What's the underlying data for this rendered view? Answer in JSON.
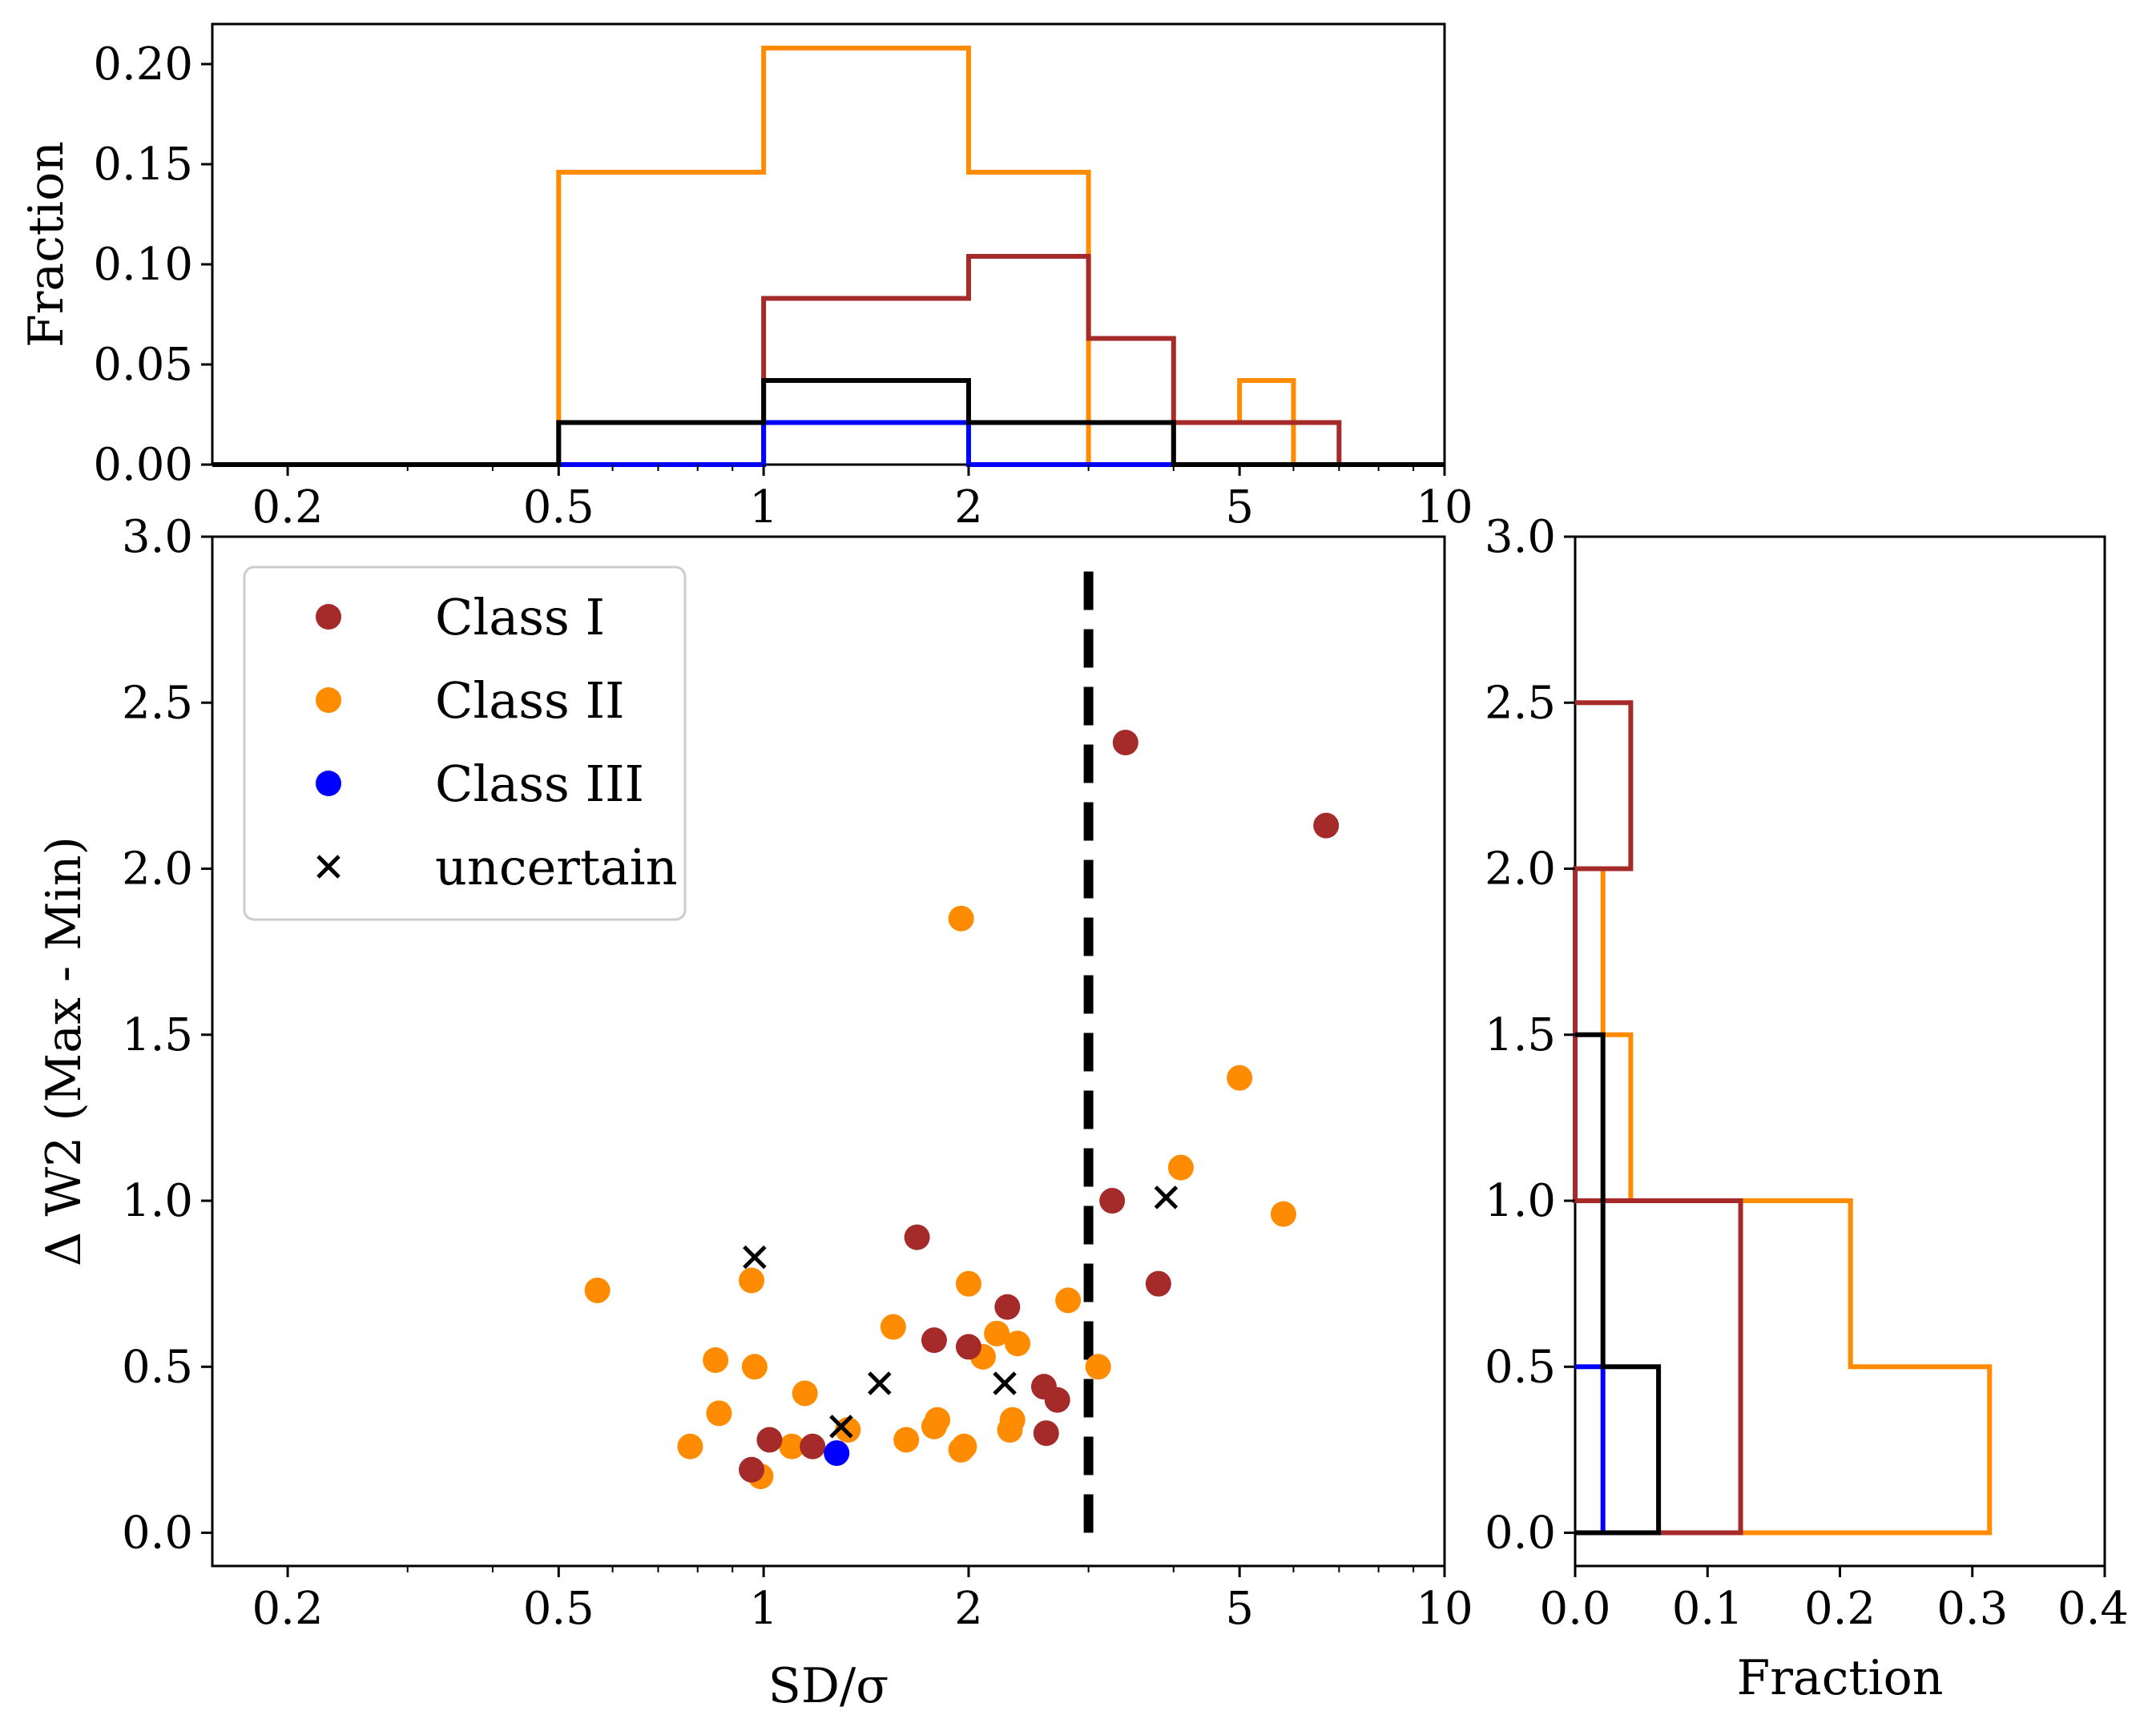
{
  "chart_data": {
    "type": "scatter",
    "colors": {
      "class_i": "#a52a2a",
      "class_ii": "#ff8c00",
      "class_iii": "#0000ff",
      "uncertain": "#000000"
    },
    "scatter": {
      "xlabel": "SD/σ",
      "ylabel": "Δ W2 (Max - Min)",
      "xscale": "log",
      "xlim": [
        0.155,
        10
      ],
      "ylim": [
        -0.1,
        3.0
      ],
      "x_ticks": [
        0.2,
        0.5,
        1,
        2,
        5,
        10
      ],
      "x_tick_labels": [
        "0.2",
        "0.5",
        "1",
        "2",
        "5",
        "10"
      ],
      "y_ticks": [
        0.0,
        0.5,
        1.0,
        1.5,
        2.0,
        2.5,
        3.0
      ],
      "y_tick_labels": [
        "0.0",
        "0.5",
        "1.0",
        "1.5",
        "2.0",
        "2.5",
        "3.0"
      ],
      "threshold_x": 3.0,
      "threshold_y_range": [
        0.0,
        2.93
      ],
      "legend": {
        "position": "upper-left",
        "entries": [
          {
            "key": "class_i",
            "label": "Class I",
            "marker": "circle"
          },
          {
            "key": "class_ii",
            "label": "Class II",
            "marker": "circle"
          },
          {
            "key": "class_iii",
            "label": "Class III",
            "marker": "circle"
          },
          {
            "key": "uncertain",
            "label": "uncertain",
            "marker": "x"
          }
        ]
      },
      "series": [
        {
          "key": "class_ii",
          "name": "Class II",
          "marker": "circle",
          "points": [
            [
              0.57,
              0.73
            ],
            [
              0.78,
              0.26
            ],
            [
              0.85,
              0.52
            ],
            [
              0.86,
              0.36
            ],
            [
              0.96,
              0.76
            ],
            [
              0.97,
              0.5
            ],
            [
              0.99,
              0.17
            ],
            [
              1.1,
              0.26
            ],
            [
              1.15,
              0.42
            ],
            [
              1.33,
              0.31
            ],
            [
              1.55,
              0.62
            ],
            [
              1.62,
              0.28
            ],
            [
              1.78,
              0.32
            ],
            [
              1.8,
              0.34
            ],
            [
              1.95,
              1.85
            ],
            [
              1.95,
              0.25
            ],
            [
              1.97,
              0.26
            ],
            [
              2.0,
              0.75
            ],
            [
              2.1,
              0.53
            ],
            [
              2.2,
              0.6
            ],
            [
              2.3,
              0.31
            ],
            [
              2.32,
              0.34
            ],
            [
              2.36,
              0.57
            ],
            [
              2.8,
              0.7
            ],
            [
              3.1,
              0.5
            ],
            [
              4.1,
              1.1
            ],
            [
              5.0,
              1.37
            ],
            [
              5.8,
              0.96
            ]
          ]
        },
        {
          "key": "class_i",
          "name": "Class I",
          "marker": "circle",
          "points": [
            [
              0.96,
              0.19
            ],
            [
              1.02,
              0.28
            ],
            [
              1.18,
              0.26
            ],
            [
              1.68,
              0.89
            ],
            [
              1.78,
              0.58
            ],
            [
              2.0,
              0.56
            ],
            [
              2.28,
              0.68
            ],
            [
              2.58,
              0.44
            ],
            [
              2.6,
              0.3
            ],
            [
              2.7,
              0.4
            ],
            [
              3.25,
              1.0
            ],
            [
              3.4,
              2.38
            ],
            [
              3.8,
              0.75
            ],
            [
              6.7,
              2.13
            ]
          ]
        },
        {
          "key": "class_iii",
          "name": "Class III",
          "marker": "circle",
          "points": [
            [
              1.28,
              0.24
            ]
          ]
        },
        {
          "key": "uncertain",
          "name": "uncertain",
          "marker": "x",
          "points": [
            [
              0.97,
              0.83
            ],
            [
              1.3,
              0.32
            ],
            [
              1.48,
              0.45
            ],
            [
              2.26,
              0.45
            ],
            [
              3.9,
              1.01
            ]
          ]
        }
      ]
    },
    "top_histogram": {
      "ylabel": "Fraction",
      "xscale": "log",
      "ylim": [
        0,
        0.22
      ],
      "y_ticks": [
        0.0,
        0.05,
        0.1,
        0.15,
        0.2
      ],
      "y_tick_labels": [
        "0.00",
        "0.05",
        "0.10",
        "0.15",
        "0.20"
      ],
      "x_ticks": [
        0.2,
        0.5,
        1,
        2,
        5,
        10
      ],
      "x_tick_labels": [
        "0.2",
        "0.5",
        "1",
        "2",
        "5",
        "10"
      ],
      "series": [
        {
          "key": "class_ii",
          "name": "Class II",
          "bins": [
            [
              0.5,
              1,
              0.146
            ],
            [
              1,
              2,
              0.208
            ],
            [
              2,
              3,
              0.146
            ],
            [
              3,
              4,
              0.0
            ],
            [
              4,
              5,
              0.021
            ],
            [
              5,
              6,
              0.042
            ]
          ]
        },
        {
          "key": "class_i",
          "name": "Class I",
          "bins": [
            [
              1,
              2,
              0.083
            ],
            [
              2,
              3,
              0.104
            ],
            [
              3,
              4,
              0.063
            ],
            [
              4,
              5,
              0.021
            ],
            [
              5,
              6,
              0.021
            ],
            [
              6,
              7,
              0.021
            ]
          ]
        },
        {
          "key": "class_iii",
          "name": "Class III",
          "bins": [
            [
              1,
              2,
              0.021
            ]
          ]
        },
        {
          "key": "uncertain",
          "name": "uncertain",
          "bins": [
            [
              0.5,
              1,
              0.021
            ],
            [
              1,
              2,
              0.042
            ],
            [
              2,
              3,
              0.021
            ],
            [
              3,
              4,
              0.021
            ]
          ]
        }
      ]
    },
    "right_histogram": {
      "xlabel": "Fraction",
      "xlim": [
        0,
        0.4
      ],
      "x_ticks": [
        0.0,
        0.1,
        0.2,
        0.3,
        0.4
      ],
      "x_tick_labels": [
        "0.0",
        "0.1",
        "0.2",
        "0.3",
        "0.4"
      ],
      "y_ticks": [
        0.0,
        0.5,
        1.0,
        1.5,
        2.0,
        2.5,
        3.0
      ],
      "y_tick_labels": [
        "0.0",
        "0.5",
        "1.0",
        "1.5",
        "2.0",
        "2.5",
        "3.0"
      ],
      "series": [
        {
          "key": "class_ii",
          "name": "Class II",
          "bins": [
            [
              0,
              0.5,
              0.313
            ],
            [
              0.5,
              1.0,
              0.208
            ],
            [
              1.0,
              1.5,
              0.042
            ],
            [
              1.5,
              2.0,
              0.021
            ]
          ]
        },
        {
          "key": "class_i",
          "name": "Class I",
          "bins": [
            [
              0,
              0.5,
              0.125
            ],
            [
              0.5,
              1.0,
              0.125
            ],
            [
              1.0,
              1.5,
              0.0
            ],
            [
              1.5,
              2.0,
              0.0
            ],
            [
              2.0,
              2.5,
              0.042
            ]
          ]
        },
        {
          "key": "class_iii",
          "name": "Class III",
          "bins": [
            [
              0,
              0.5,
              0.021
            ]
          ]
        },
        {
          "key": "uncertain",
          "name": "uncertain",
          "bins": [
            [
              0,
              0.5,
              0.063
            ],
            [
              0.5,
              1.0,
              0.021
            ],
            [
              1.0,
              1.5,
              0.021
            ]
          ]
        }
      ]
    }
  }
}
